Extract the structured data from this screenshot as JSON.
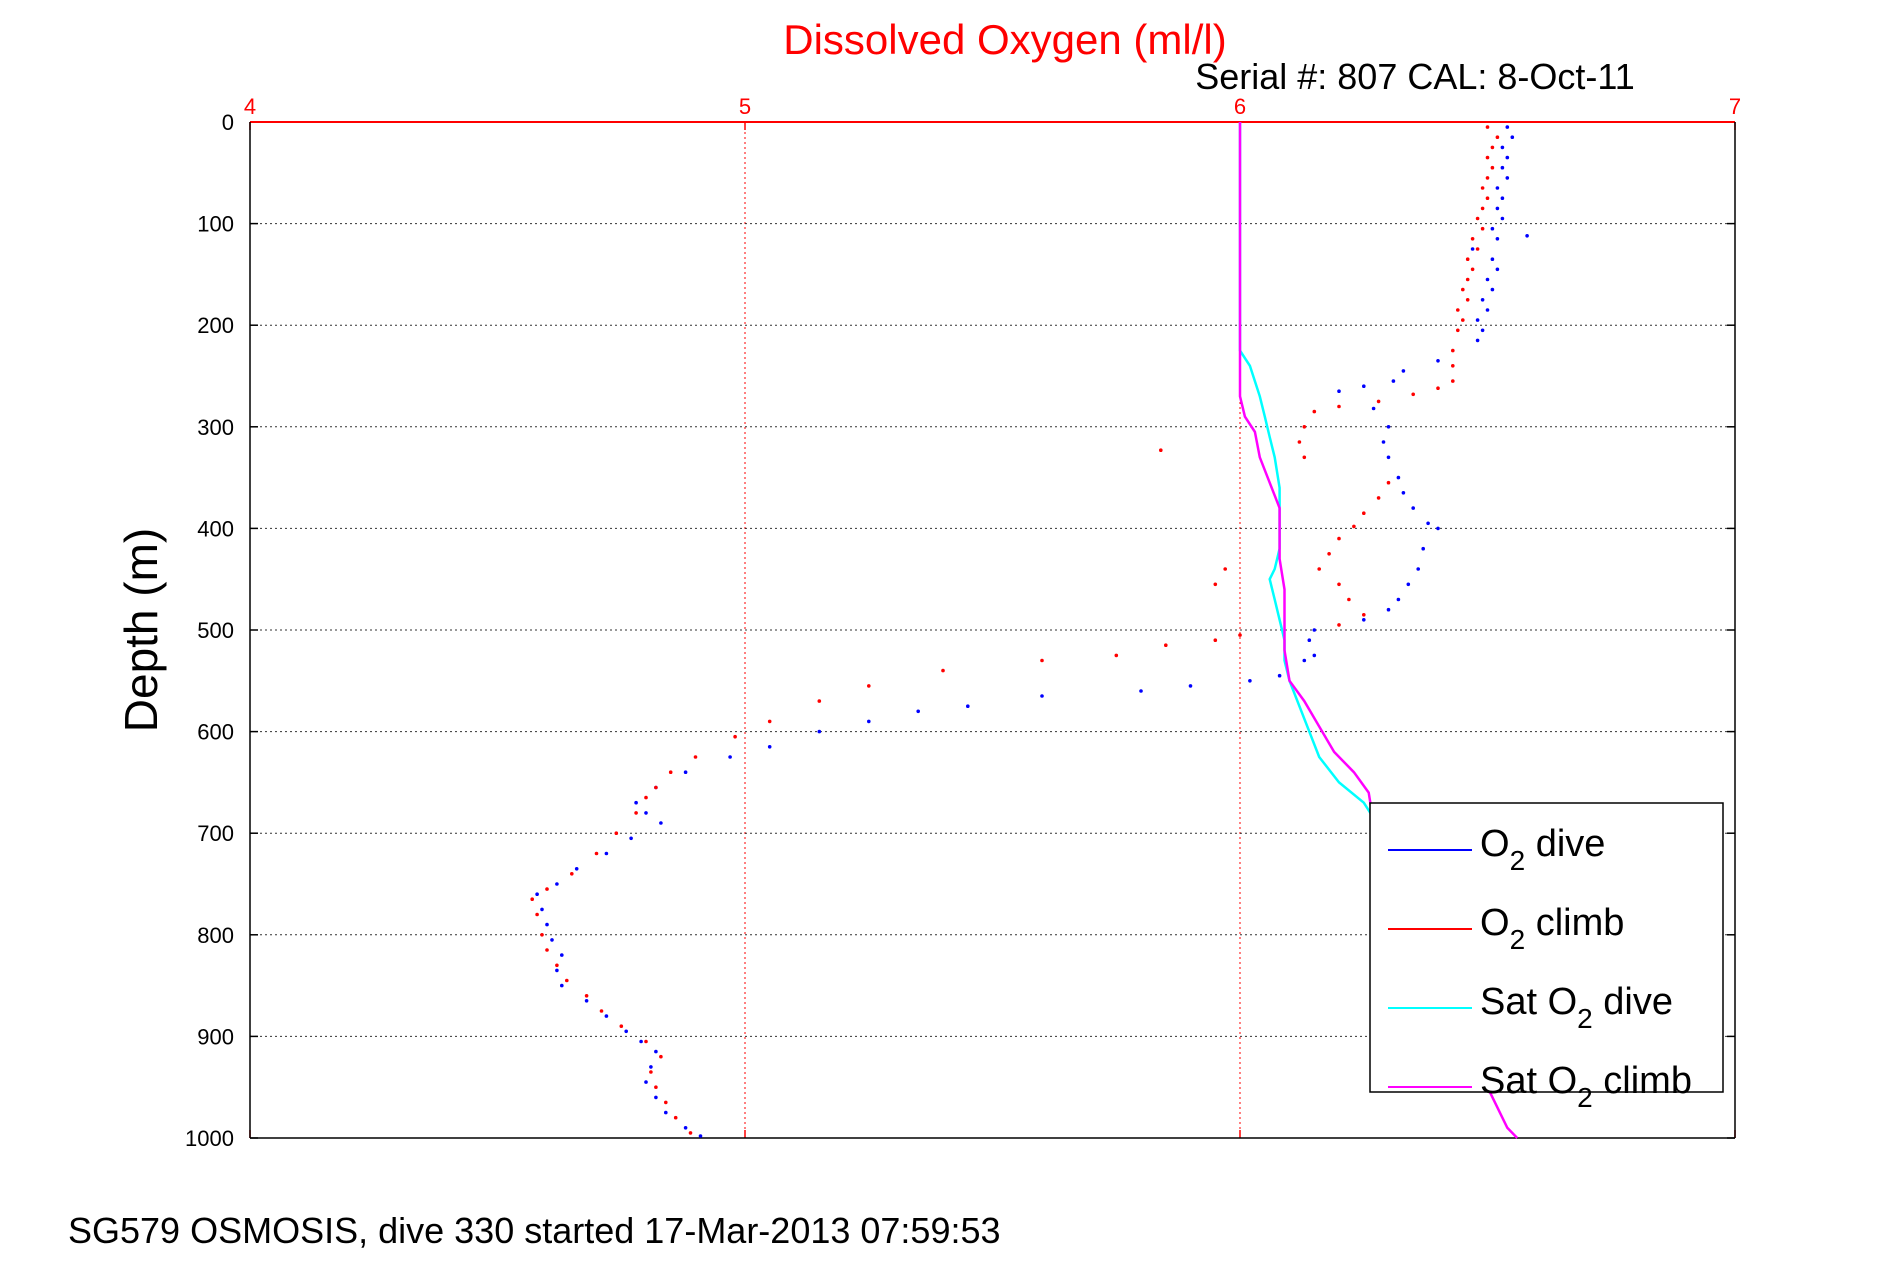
{
  "chart_data": {
    "type": "scatter",
    "title": "Dissolved Oxygen (ml/l)",
    "subtitle": "Serial #: 807  CAL: 8-Oct-11",
    "ylabel": "Depth (m)",
    "xlabel": "",
    "xlim": [
      4,
      7
    ],
    "ylim": [
      0,
      1000
    ],
    "y_reversed": true,
    "x_axis_position": "top",
    "x_ticks": [
      "4",
      "5",
      "6",
      "7"
    ],
    "y_ticks": [
      "0",
      "100",
      "200",
      "300",
      "400",
      "500",
      "600",
      "700",
      "800",
      "900",
      "1000"
    ],
    "grid": true,
    "legend_position": "bottom-right",
    "colors": {
      "title": "#ff0000",
      "x_axis": "#ff0000",
      "o2_dive": "#0000ff",
      "o2_climb": "#ff0000",
      "sat_o2_dive": "#00ffff",
      "sat_o2_climb": "#ff00ff"
    },
    "series": [
      {
        "name": "O2 dive",
        "legend_base": "O",
        "legend_sub": "2",
        "legend_rest": " dive",
        "style": "dots",
        "points": [
          [
            6.54,
            5
          ],
          [
            6.55,
            15
          ],
          [
            6.53,
            25
          ],
          [
            6.54,
            35
          ],
          [
            6.53,
            45
          ],
          [
            6.54,
            55
          ],
          [
            6.52,
            65
          ],
          [
            6.53,
            75
          ],
          [
            6.52,
            85
          ],
          [
            6.53,
            95
          ],
          [
            6.51,
            105
          ],
          [
            6.52,
            115
          ],
          [
            6.58,
            112
          ],
          [
            6.47,
            125
          ],
          [
            6.51,
            135
          ],
          [
            6.52,
            145
          ],
          [
            6.5,
            155
          ],
          [
            6.51,
            165
          ],
          [
            6.49,
            175
          ],
          [
            6.5,
            185
          ],
          [
            6.48,
            195
          ],
          [
            6.49,
            205
          ],
          [
            6.48,
            215
          ],
          [
            6.4,
            235
          ],
          [
            6.33,
            245
          ],
          [
            6.31,
            255
          ],
          [
            6.25,
            260
          ],
          [
            6.2,
            265
          ],
          [
            6.27,
            282
          ],
          [
            6.3,
            300
          ],
          [
            6.29,
            315
          ],
          [
            6.3,
            330
          ],
          [
            6.32,
            350
          ],
          [
            6.33,
            365
          ],
          [
            6.35,
            380
          ],
          [
            6.38,
            395
          ],
          [
            6.4,
            400
          ],
          [
            6.37,
            420
          ],
          [
            6.36,
            440
          ],
          [
            6.34,
            455
          ],
          [
            6.32,
            470
          ],
          [
            6.3,
            480
          ],
          [
            6.25,
            490
          ],
          [
            6.15,
            500
          ],
          [
            6.14,
            510
          ],
          [
            6.15,
            525
          ],
          [
            6.13,
            530
          ],
          [
            6.08,
            545
          ],
          [
            6.02,
            550
          ],
          [
            5.9,
            555
          ],
          [
            5.8,
            560
          ],
          [
            5.6,
            565
          ],
          [
            5.45,
            575
          ],
          [
            5.35,
            580
          ],
          [
            5.25,
            590
          ],
          [
            5.15,
            600
          ],
          [
            5.05,
            615
          ],
          [
            4.97,
            625
          ],
          [
            4.88,
            640
          ],
          [
            4.82,
            655
          ],
          [
            4.78,
            670
          ],
          [
            4.8,
            680
          ],
          [
            4.83,
            690
          ],
          [
            4.77,
            705
          ],
          [
            4.72,
            720
          ],
          [
            4.66,
            735
          ],
          [
            4.62,
            750
          ],
          [
            4.58,
            760
          ],
          [
            4.59,
            775
          ],
          [
            4.6,
            790
          ],
          [
            4.61,
            805
          ],
          [
            4.63,
            820
          ],
          [
            4.62,
            835
          ],
          [
            4.63,
            850
          ],
          [
            4.68,
            865
          ],
          [
            4.72,
            880
          ],
          [
            4.76,
            895
          ],
          [
            4.79,
            905
          ],
          [
            4.82,
            915
          ],
          [
            4.81,
            930
          ],
          [
            4.8,
            945
          ],
          [
            4.82,
            960
          ],
          [
            4.84,
            975
          ],
          [
            4.88,
            990
          ],
          [
            4.91,
            998
          ]
        ]
      },
      {
        "name": "O2 climb",
        "legend_base": "O",
        "legend_sub": "2",
        "legend_rest": " climb",
        "style": "dots",
        "points": [
          [
            6.5,
            5
          ],
          [
            6.52,
            15
          ],
          [
            6.51,
            25
          ],
          [
            6.5,
            35
          ],
          [
            6.51,
            45
          ],
          [
            6.5,
            55
          ],
          [
            6.49,
            65
          ],
          [
            6.5,
            75
          ],
          [
            6.49,
            85
          ],
          [
            6.48,
            95
          ],
          [
            6.49,
            105
          ],
          [
            6.47,
            115
          ],
          [
            6.48,
            125
          ],
          [
            6.46,
            135
          ],
          [
            6.47,
            145
          ],
          [
            6.46,
            155
          ],
          [
            6.45,
            165
          ],
          [
            6.46,
            175
          ],
          [
            6.44,
            185
          ],
          [
            6.45,
            195
          ],
          [
            6.44,
            205
          ],
          [
            6.43,
            225
          ],
          [
            6.43,
            240
          ],
          [
            6.43,
            255
          ],
          [
            6.4,
            262
          ],
          [
            6.35,
            268
          ],
          [
            6.28,
            275
          ],
          [
            6.2,
            280
          ],
          [
            6.15,
            285
          ],
          [
            6.13,
            300
          ],
          [
            6.12,
            315
          ],
          [
            6.13,
            330
          ],
          [
            6.3,
            355
          ],
          [
            6.28,
            370
          ],
          [
            6.25,
            385
          ],
          [
            6.23,
            398
          ],
          [
            6.2,
            410
          ],
          [
            6.18,
            425
          ],
          [
            6.16,
            440
          ],
          [
            6.2,
            455
          ],
          [
            6.22,
            470
          ],
          [
            6.25,
            485
          ],
          [
            6.2,
            495
          ],
          [
            6.0,
            505
          ],
          [
            5.95,
            510
          ],
          [
            5.85,
            515
          ],
          [
            5.75,
            525
          ],
          [
            5.6,
            530
          ],
          [
            5.4,
            540
          ],
          [
            5.25,
            555
          ],
          [
            5.15,
            570
          ],
          [
            5.05,
            590
          ],
          [
            4.98,
            605
          ],
          [
            4.9,
            625
          ],
          [
            4.85,
            640
          ],
          [
            4.82,
            655
          ],
          [
            4.8,
            665
          ],
          [
            4.78,
            680
          ],
          [
            4.74,
            700
          ],
          [
            4.7,
            720
          ],
          [
            4.65,
            740
          ],
          [
            4.6,
            755
          ],
          [
            4.57,
            765
          ],
          [
            4.58,
            780
          ],
          [
            4.59,
            800
          ],
          [
            4.6,
            815
          ],
          [
            4.62,
            830
          ],
          [
            4.64,
            845
          ],
          [
            4.68,
            860
          ],
          [
            4.71,
            875
          ],
          [
            4.75,
            890
          ],
          [
            4.8,
            905
          ],
          [
            4.83,
            920
          ],
          [
            4.81,
            935
          ],
          [
            4.82,
            950
          ],
          [
            4.84,
            965
          ],
          [
            4.86,
            980
          ],
          [
            4.89,
            995
          ],
          [
            5.84,
            323
          ],
          [
            5.97,
            440
          ],
          [
            5.95,
            455
          ]
        ]
      },
      {
        "name": "Sat O2 dive",
        "legend_base": "Sat O",
        "legend_sub": "2",
        "legend_rest": " dive",
        "style": "line",
        "points": [
          [
            6.0,
            0
          ],
          [
            6.0,
            50
          ],
          [
            6.0,
            100
          ],
          [
            6.0,
            150
          ],
          [
            6.0,
            200
          ],
          [
            6.0,
            225
          ],
          [
            6.02,
            240
          ],
          [
            6.04,
            270
          ],
          [
            6.05,
            290
          ],
          [
            6.06,
            310
          ],
          [
            6.07,
            330
          ],
          [
            6.08,
            360
          ],
          [
            6.08,
            380
          ],
          [
            6.08,
            400
          ],
          [
            6.08,
            420
          ],
          [
            6.07,
            440
          ],
          [
            6.06,
            450
          ],
          [
            6.07,
            470
          ],
          [
            6.08,
            490
          ],
          [
            6.09,
            510
          ],
          [
            6.09,
            530
          ],
          [
            6.1,
            550
          ],
          [
            6.12,
            575
          ],
          [
            6.14,
            600
          ],
          [
            6.16,
            625
          ],
          [
            6.2,
            650
          ],
          [
            6.25,
            670
          ],
          [
            6.27,
            685
          ]
        ]
      },
      {
        "name": "Sat O2 climb",
        "legend_base": "Sat O",
        "legend_sub": "2",
        "legend_rest": " climb",
        "style": "line",
        "points": [
          [
            6.0,
            0
          ],
          [
            6.0,
            50
          ],
          [
            6.0,
            100
          ],
          [
            6.0,
            150
          ],
          [
            6.0,
            200
          ],
          [
            6.0,
            250
          ],
          [
            6.0,
            270
          ],
          [
            6.01,
            290
          ],
          [
            6.03,
            305
          ],
          [
            6.04,
            330
          ],
          [
            6.06,
            355
          ],
          [
            6.08,
            380
          ],
          [
            6.08,
            405
          ],
          [
            6.08,
            430
          ],
          [
            6.09,
            460
          ],
          [
            6.09,
            490
          ],
          [
            6.09,
            520
          ],
          [
            6.1,
            550
          ],
          [
            6.13,
            570
          ],
          [
            6.16,
            595
          ],
          [
            6.19,
            620
          ],
          [
            6.23,
            640
          ],
          [
            6.26,
            660
          ],
          [
            6.27,
            690
          ],
          [
            6.27,
            720
          ],
          [
            6.54,
            990
          ],
          [
            6.56,
            1000
          ]
        ]
      }
    ]
  },
  "footer": {
    "caption": "SG579 OSMOSIS, dive 330 started 17-Mar-2013 07:59:53"
  }
}
